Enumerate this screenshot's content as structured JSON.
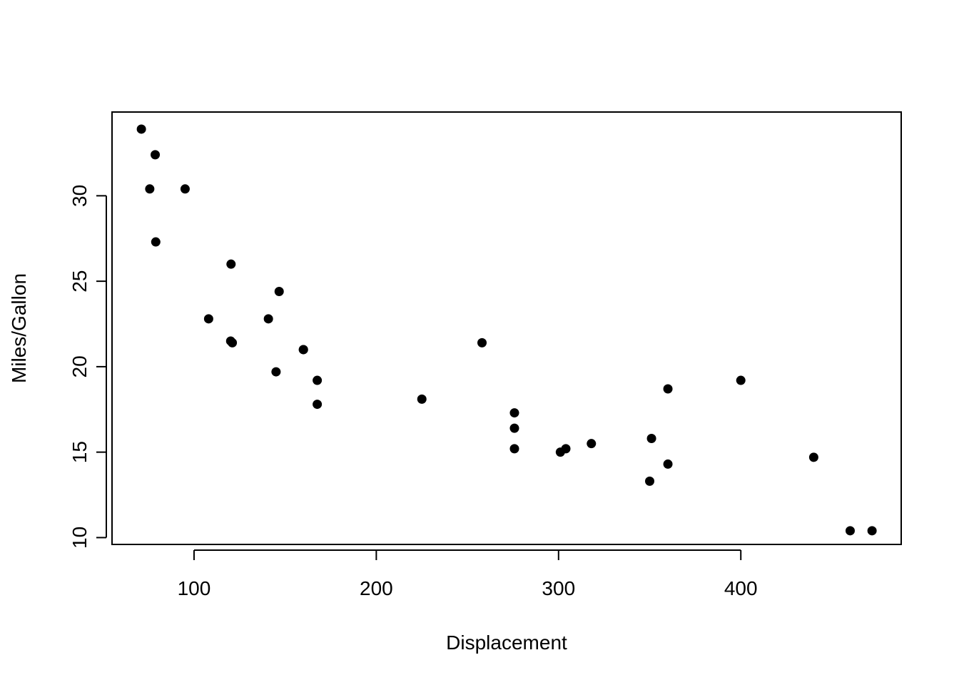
{
  "chart_data": {
    "type": "scatter",
    "title": "",
    "xlabel": "Displacement",
    "ylabel": "Miles/Gallon",
    "xlim": [
      55,
      488
    ],
    "ylim": [
      9.6,
      34.9
    ],
    "xticks": [
      100,
      200,
      300,
      400
    ],
    "yticks": [
      10,
      15,
      20,
      25,
      30
    ],
    "grid": false,
    "legend": "none",
    "point_color": "#000000",
    "points": [
      {
        "x": 71.1,
        "y": 33.9
      },
      {
        "x": 78.7,
        "y": 32.4
      },
      {
        "x": 75.7,
        "y": 30.4
      },
      {
        "x": 95.1,
        "y": 30.4
      },
      {
        "x": 79.0,
        "y": 27.3
      },
      {
        "x": 120.3,
        "y": 26.0
      },
      {
        "x": 146.7,
        "y": 24.4
      },
      {
        "x": 108.0,
        "y": 22.8
      },
      {
        "x": 140.8,
        "y": 22.8
      },
      {
        "x": 120.1,
        "y": 21.5
      },
      {
        "x": 121.0,
        "y": 21.4
      },
      {
        "x": 258.0,
        "y": 21.4
      },
      {
        "x": 160.0,
        "y": 21.0
      },
      {
        "x": 160.0,
        "y": 21.0
      },
      {
        "x": 145.0,
        "y": 19.7
      },
      {
        "x": 167.6,
        "y": 19.2
      },
      {
        "x": 400.0,
        "y": 19.2
      },
      {
        "x": 360.0,
        "y": 18.7
      },
      {
        "x": 225.0,
        "y": 18.1
      },
      {
        "x": 167.6,
        "y": 17.8
      },
      {
        "x": 275.8,
        "y": 17.3
      },
      {
        "x": 275.8,
        "y": 16.4
      },
      {
        "x": 351.0,
        "y": 15.8
      },
      {
        "x": 318.0,
        "y": 15.5
      },
      {
        "x": 304.0,
        "y": 15.2
      },
      {
        "x": 275.8,
        "y": 15.2
      },
      {
        "x": 301.0,
        "y": 15.0
      },
      {
        "x": 440.0,
        "y": 14.7
      },
      {
        "x": 360.0,
        "y": 14.3
      },
      {
        "x": 350.0,
        "y": 13.3
      },
      {
        "x": 460.0,
        "y": 10.4
      },
      {
        "x": 472.0,
        "y": 10.4
      }
    ]
  }
}
